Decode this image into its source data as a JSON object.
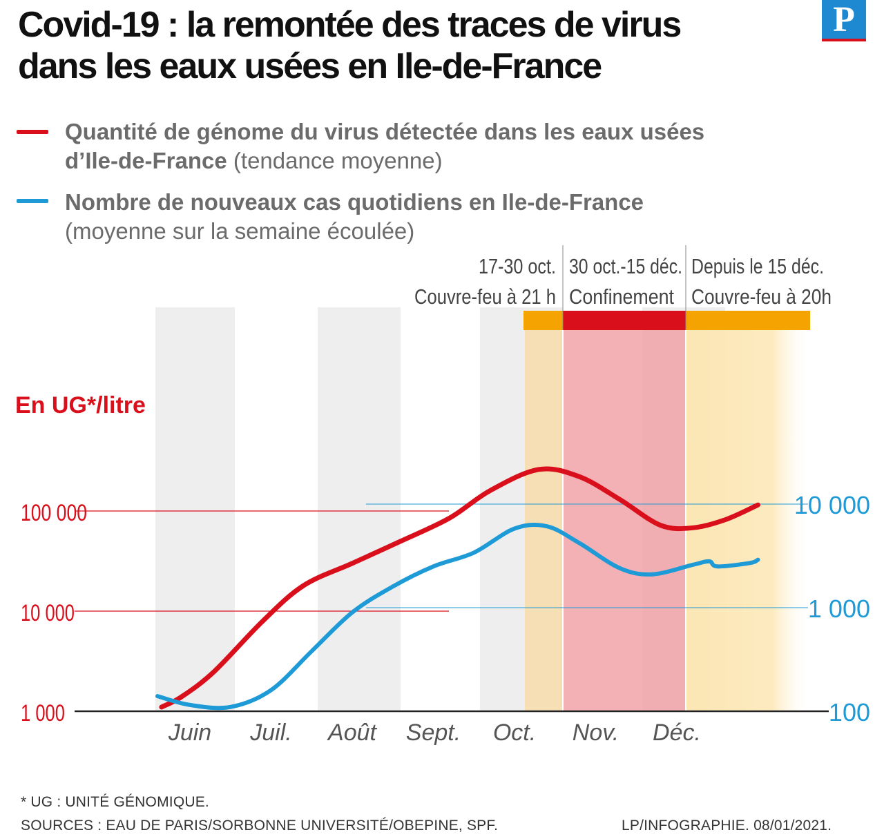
{
  "title": {
    "line1": "Covid-19 : la remontée des traces de virus",
    "line2": "dans les eaux usées en Ile-de-France"
  },
  "logo": {
    "letter": "P",
    "icon": "le-parisien-logo"
  },
  "legend": [
    {
      "bold": "Quantité de génome du virus détectée dans les eaux usées",
      "bold2": "d’Ile-de-France",
      "normal": "(tendance moyenne)",
      "color": "#d90f1b"
    },
    {
      "bold": "Nombre de nouveaux cas quotidiens en Ile-de-France",
      "normal": "(moyenne sur la semaine écoulée)",
      "color": "#1e9ad6"
    }
  ],
  "periods": [
    {
      "dates": "17-30 oct.",
      "label": "Couvre-feu à 21 h",
      "color": "#f5a300"
    },
    {
      "dates": "30 oct.-15 déc.",
      "label": "Confinement",
      "color": "#d90f1b"
    },
    {
      "dates": "Depuis le 15 déc.",
      "label": "Couvre-feu à 20h",
      "color": "#f5a300"
    }
  ],
  "chart_data": {
    "type": "line",
    "title": "Covid-19 : la remontée des traces de virus dans les eaux usées en Ile-de-France",
    "left_axis_label": "En UG*/litre",
    "left_axis": {
      "scale": "log",
      "ticks": [
        1000,
        10000,
        100000
      ],
      "tick_labels": [
        "1 000",
        "10 000",
        "100 000"
      ],
      "color": "#d90f1b"
    },
    "right_axis": {
      "scale": "log",
      "ticks": [
        100,
        1000,
        10000
      ],
      "tick_labels": [
        "100",
        "1 000",
        "10 000"
      ],
      "color": "#1e9ad6"
    },
    "months": [
      "Juin",
      "Juil.",
      "Août",
      "Sept.",
      "Oct.",
      "Nov.",
      "Déc."
    ],
    "x_unit": "month index (0 = mid-June, 1 = mid-July, ...)",
    "series": [
      {
        "name": "Quantité de génome du virus (UG/litre)",
        "axis": "left",
        "color": "#d90f1b",
        "x": [
          -0.35,
          -0.1,
          0.3,
          0.9,
          1.4,
          2.0,
          2.6,
          3.2,
          3.7,
          4.3,
          4.8,
          5.3,
          5.8,
          6.2,
          6.6,
          7.0
        ],
        "y": [
          1100,
          1400,
          2500,
          8000,
          18000,
          30000,
          50000,
          85000,
          160000,
          260000,
          220000,
          130000,
          72000,
          68000,
          82000,
          115000
        ]
      },
      {
        "name": "Nouveaux cas quotidiens",
        "axis": "right",
        "color": "#1e9ad6",
        "x": [
          -0.4,
          0.0,
          0.5,
          1.0,
          1.5,
          2.0,
          2.5,
          3.0,
          3.5,
          4.0,
          4.4,
          4.8,
          5.3,
          5.7,
          6.2,
          6.4,
          6.5,
          6.9,
          7.0
        ],
        "y": [
          140,
          115,
          110,
          160,
          380,
          900,
          1600,
          2500,
          3400,
          5800,
          6100,
          4200,
          2400,
          2100,
          2600,
          2800,
          2500,
          2700,
          2900
        ]
      }
    ]
  },
  "footer": {
    "note": "* UG : UNITÉ GÉNOMIQUE.",
    "sources": "SOURCES : EAU DE PARIS/SORBONNE UNIVERSITÉ/OBEPINE, SPF.",
    "credit": "LP/INFOGRAPHIE.  08/01/2021."
  }
}
